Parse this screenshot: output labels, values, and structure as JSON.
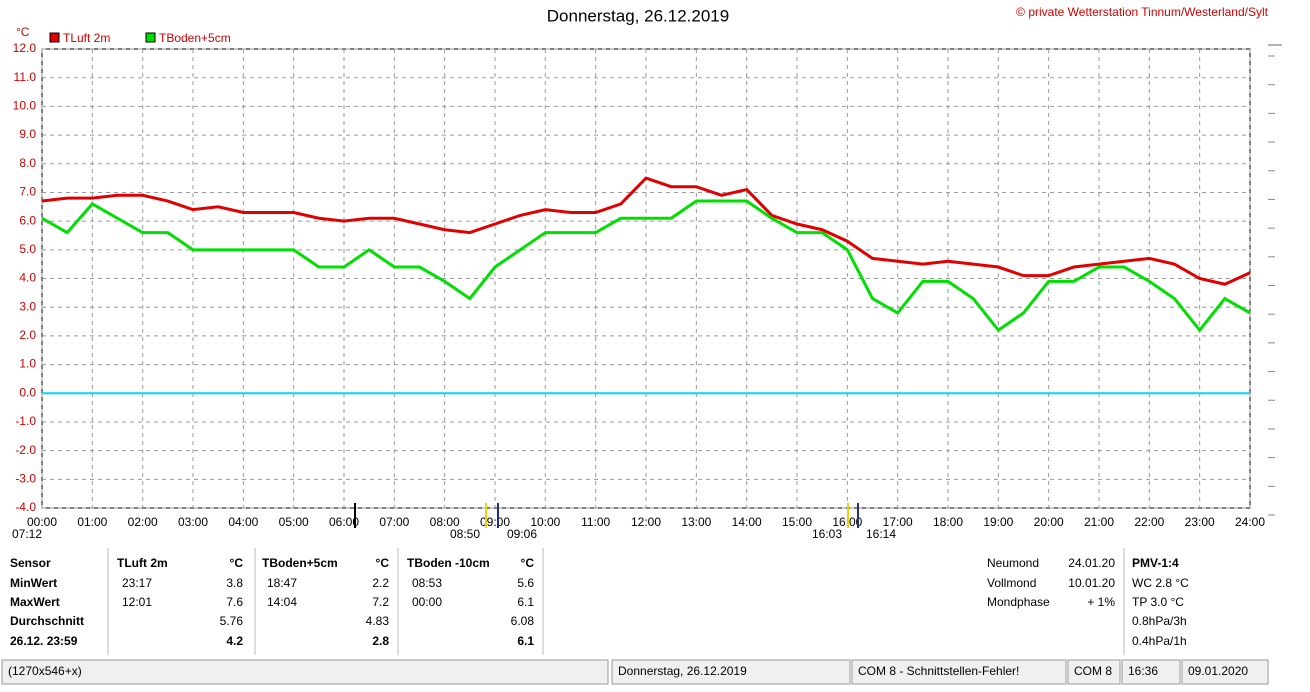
{
  "chart_data": {
    "type": "line",
    "title": "Donnerstag, 26.12.2019",
    "copyright": "© private Wetterstation Tinnum/Westerland/Sylt",
    "y_unit": "°C",
    "x": [
      0,
      0.5,
      1,
      1.5,
      2,
      2.5,
      3,
      3.5,
      4,
      4.5,
      5,
      5.5,
      6,
      6.5,
      7,
      7.5,
      8,
      8.5,
      9,
      9.5,
      10,
      10.5,
      11,
      11.5,
      12,
      12.5,
      13,
      13.5,
      14,
      14.5,
      15,
      15.5,
      16,
      16.5,
      17,
      17.5,
      18,
      18.5,
      19,
      19.5,
      20,
      20.5,
      21,
      21.5,
      22,
      22.5,
      23,
      23.5,
      24
    ],
    "series": [
      {
        "name": "TLuft 2m",
        "color": "#e00000",
        "values": [
          6.7,
          6.8,
          6.8,
          6.9,
          6.9,
          6.7,
          6.4,
          6.5,
          6.3,
          6.3,
          6.3,
          6.1,
          6.0,
          6.1,
          6.1,
          5.9,
          5.7,
          5.6,
          5.9,
          6.2,
          6.4,
          6.3,
          6.3,
          6.6,
          7.5,
          7.2,
          7.2,
          6.9,
          7.1,
          6.2,
          5.9,
          5.7,
          5.3,
          4.7,
          4.6,
          4.5,
          4.6,
          4.5,
          4.4,
          4.1,
          4.1,
          4.4,
          4.5,
          4.6,
          4.7,
          4.5,
          4.0,
          3.8,
          4.2
        ]
      },
      {
        "name": "TBoden+5cm",
        "color": "#00e000",
        "values": [
          6.1,
          5.6,
          6.6,
          6.1,
          5.6,
          5.6,
          5.0,
          5.0,
          5.0,
          5.0,
          5.0,
          4.4,
          4.4,
          5.0,
          4.4,
          4.4,
          3.9,
          3.3,
          4.4,
          5.0,
          5.6,
          5.6,
          5.6,
          6.1,
          6.1,
          6.1,
          6.7,
          6.7,
          6.7,
          6.1,
          5.6,
          5.6,
          5.0,
          3.3,
          2.8,
          3.9,
          3.9,
          3.3,
          2.2,
          2.8,
          3.9,
          3.9,
          4.4,
          4.4,
          3.9,
          3.3,
          2.2,
          3.3,
          2.8
        ]
      }
    ],
    "reference_line": {
      "value": 0,
      "color": "#00d8e8"
    },
    "xlim": [
      0,
      24
    ],
    "xticks": [
      {
        "value": 0,
        "label": "00:00"
      },
      {
        "value": 1,
        "label": "01:00"
      },
      {
        "value": 2,
        "label": "02:00"
      },
      {
        "value": 3,
        "label": "03:00"
      },
      {
        "value": 4,
        "label": "04:00"
      },
      {
        "value": 5,
        "label": "05:00"
      },
      {
        "value": 6,
        "label": "06:00"
      },
      {
        "value": 7,
        "label": "07:00"
      },
      {
        "value": 8,
        "label": "08:00"
      },
      {
        "value": 9,
        "label": "09:00"
      },
      {
        "value": 10,
        "label": "10:00"
      },
      {
        "value": 11,
        "label": "11:00"
      },
      {
        "value": 12,
        "label": "12:00"
      },
      {
        "value": 13,
        "label": "13:00"
      },
      {
        "value": 14,
        "label": "14:00"
      },
      {
        "value": 15,
        "label": "15:00"
      },
      {
        "value": 16,
        "label": "16:00"
      },
      {
        "value": 17,
        "label": "17:00"
      },
      {
        "value": 18,
        "label": "18:00"
      },
      {
        "value": 19,
        "label": "19:00"
      },
      {
        "value": 20,
        "label": "20:00"
      },
      {
        "value": 21,
        "label": "21:00"
      },
      {
        "value": 22,
        "label": "22:00"
      },
      {
        "value": 23,
        "label": "23:00"
      },
      {
        "value": 24,
        "label": "24:00"
      }
    ],
    "ylim": [
      -4,
      12
    ],
    "yticks": [
      {
        "value": 12,
        "label": "12.0"
      },
      {
        "value": 11,
        "label": "11.0"
      },
      {
        "value": 10,
        "label": "10.0"
      },
      {
        "value": 9,
        "label": "9.0"
      },
      {
        "value": 8,
        "label": "8.0"
      },
      {
        "value": 7,
        "label": "7.0"
      },
      {
        "value": 6,
        "label": "6.0"
      },
      {
        "value": 5,
        "label": "5.0"
      },
      {
        "value": 4,
        "label": "4.0"
      },
      {
        "value": 3,
        "label": "3.0"
      },
      {
        "value": 2,
        "label": "2.0"
      },
      {
        "value": 1,
        "label": "1.0"
      },
      {
        "value": 0,
        "label": "0.0"
      },
      {
        "value": -1,
        "label": "-1.0"
      },
      {
        "value": -2,
        "label": "-2.0"
      },
      {
        "value": -3,
        "label": "-3.0"
      },
      {
        "value": -4,
        "label": "-4.0"
      }
    ],
    "grid": true,
    "event_labels": [
      "07:12",
      "08:50",
      "09:06",
      "16:03",
      "16:14"
    ]
  },
  "table": {
    "rows": [
      [
        "Sensor",
        "TLuft 2m",
        "°C",
        "TBoden+5cm",
        "°C",
        "TBoden -10cm",
        "°C"
      ],
      [
        "MinWert",
        "23:17",
        "3.8",
        "18:47",
        "2.2",
        "08:53",
        "5.6"
      ],
      [
        "MaxWert",
        "12:01",
        "7.6",
        "14:04",
        "7.2",
        "00:00",
        "6.1"
      ],
      [
        "Durchschnitt",
        null,
        "5.76",
        null,
        "4.83",
        null,
        "6.08"
      ],
      [
        "26.12. 23:59",
        null,
        "4.2",
        null,
        "2.8",
        null,
        "6.1"
      ]
    ]
  },
  "moon": {
    "rows": [
      [
        "Neumond",
        "24.01.20"
      ],
      [
        "Vollmond",
        "10.01.20"
      ],
      [
        "Mondphase",
        "+ 1%"
      ]
    ]
  },
  "pmv": {
    "lines": [
      "PMV-1:4",
      "WC 2.8 °C",
      "TP 3.0 °C",
      "0.8hPa/3h",
      "0.4hPa/1h"
    ]
  },
  "status": {
    "cells": [
      "(1270x546+x)",
      "Donnerstag, 26.12.2019",
      "COM 8 - Schnittstellen-Fehler!",
      "COM 8",
      "16:36",
      "09.01.2020"
    ]
  }
}
